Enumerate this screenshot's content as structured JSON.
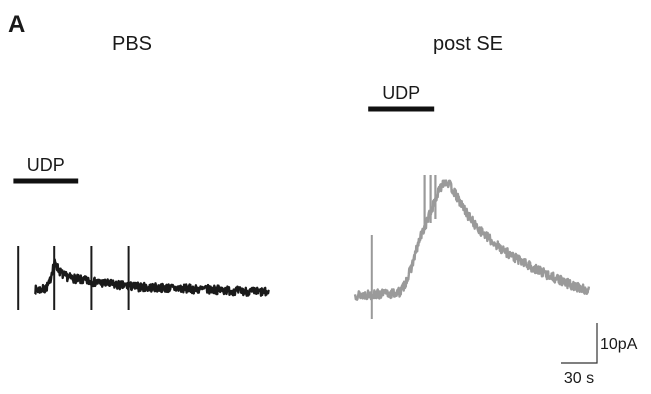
{
  "figure": {
    "panel_letter": "A",
    "colors": {
      "pbs_trace": "#1a1a1a",
      "post_se_trace": "#9a9a9a",
      "bar": "#111111",
      "scale": "#333333"
    }
  },
  "chart_data": [
    {
      "type": "line",
      "title": "PBS",
      "series": [
        {
          "name": "",
          "color": "#1a1a1a",
          "x": [
            0,
            8,
            12,
            14,
            16,
            18,
            21,
            24,
            28,
            34,
            40,
            50,
            60,
            70,
            80,
            90,
            100,
            110,
            120,
            135,
            150,
            165,
            180,
            195
          ],
          "y": [
            0,
            0.2,
            1.5,
            4.5,
            6.8,
            6.0,
            4.5,
            3.6,
            3.2,
            2.8,
            2.4,
            2.0,
            1.6,
            1.2,
            0.9,
            0.7,
            0.6,
            0.5,
            0.4,
            0.2,
            0.1,
            -0.2,
            -0.4,
            -0.6
          ]
        }
      ],
      "stimulus": {
        "label": "UDP",
        "x_range": [
          -18,
          36
        ]
      },
      "artifacts": {
        "x": [
          -14,
          16,
          47,
          78
        ],
        "y_range": [
          -5,
          11
        ]
      }
    },
    {
      "type": "line",
      "title": "post SE",
      "series": [
        {
          "name": "",
          "color": "#9a9a9a",
          "x": [
            0,
            30,
            38,
            42,
            46,
            50,
            54,
            58,
            62,
            66,
            70,
            74,
            78,
            82,
            86,
            90,
            94,
            100,
            110,
            120,
            135,
            150,
            165,
            180,
            195
          ],
          "y": [
            0,
            0.3,
            0.8,
            3.0,
            6.0,
            10.0,
            14.0,
            17.0,
            20.0,
            23.0,
            26.0,
            28.5,
            28.0,
            26.0,
            24.0,
            22.0,
            20.0,
            17.5,
            14.5,
            12.0,
            9.0,
            6.5,
            4.5,
            2.5,
            1.0
          ]
        }
      ],
      "stimulus": {
        "label": "UDP",
        "x_range": [
          11,
          66
        ]
      },
      "artifacts": {
        "x": [
          14,
          58,
          63,
          67
        ],
        "y_range": [
          -6,
          15
        ]
      }
    }
  ],
  "scale_bar": {
    "x_label": "30 s",
    "y_label": "10pA",
    "x_value": 30,
    "y_value": 10
  }
}
